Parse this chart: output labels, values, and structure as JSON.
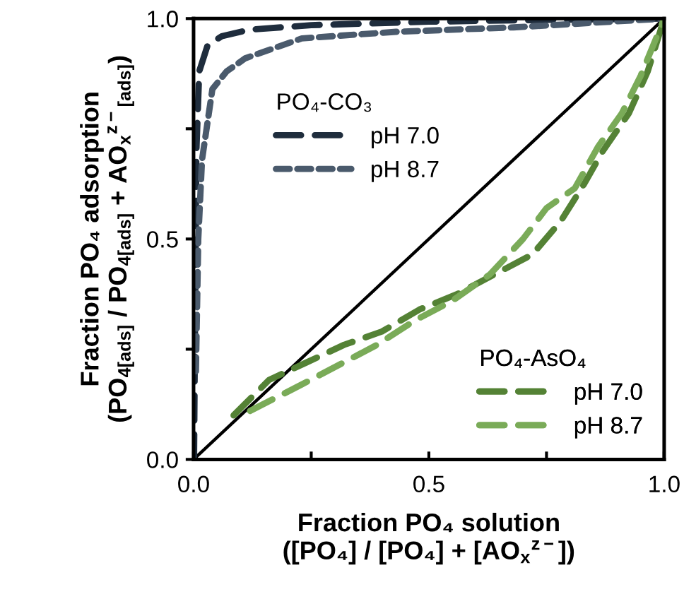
{
  "chart_data": {
    "type": "line",
    "xlabel": "Fraction PO₄ solution\n([PO₄] / [PO₄] + [AO$_{x}$$^{z−}$])",
    "ylabel": "Fraction PO₄ adsorption\n(PO$_{4[ads]}$ / PO$_{4[ads]}$ + AO$_{x}$$^{z−}$$_{[ads]}$)",
    "annotations": [
      "PO₄-CO₃",
      "PO₄-AsO₄"
    ],
    "xlim": [
      0,
      1
    ],
    "ylim": [
      0,
      1
    ],
    "xticks": [
      {
        "value": 0,
        "label": "0.0"
      },
      {
        "value": 0.25,
        "label": null
      },
      {
        "value": 0.5,
        "label": "0.5"
      },
      {
        "value": 0.75,
        "label": null
      },
      {
        "value": 1,
        "label": "1.0"
      }
    ],
    "yticks": [
      {
        "value": 0,
        "label": "0.0"
      },
      {
        "value": 0.25,
        "label": null
      },
      {
        "value": 0.5,
        "label": "0.5"
      },
      {
        "value": 0.75,
        "label": null
      },
      {
        "value": 1,
        "label": "1.0"
      }
    ],
    "grid": false,
    "legend": "right",
    "marker": "none",
    "series": [
      {
        "color": "#000000",
        "line_style": "solid",
        "x": [
          0,
          1
        ],
        "values": [
          0,
          1
        ]
      },
      {
        "name": "pH 7.0",
        "color": "#1f2d3d",
        "line_style": "dashed",
        "x": [
          0.001,
          0.003,
          0.006,
          0.012,
          0.03,
          0.06,
          0.12,
          0.25,
          0.5,
          0.75,
          1
        ],
        "values": [
          0.0,
          0.3,
          0.7,
          0.88,
          0.94,
          0.96,
          0.975,
          0.985,
          0.993,
          0.997,
          1
        ]
      },
      {
        "name": "pH 8.7",
        "color": "#4a5a6c",
        "line_style": "dotted",
        "x": [
          0.005,
          0.01,
          0.018,
          0.04,
          0.07,
          0.11,
          0.23,
          0.43,
          0.68,
          1
        ],
        "values": [
          0.2,
          0.5,
          0.68,
          0.84,
          0.88,
          0.91,
          0.955,
          0.97,
          0.98,
          1
        ]
      },
      {
        "name": "pH 7.0",
        "color": "#548235",
        "line_style": "dashed",
        "x": [
          0.085,
          0.16,
          0.24,
          0.32,
          0.4,
          0.48,
          0.56,
          0.64,
          0.72,
          0.78,
          0.83,
          0.87,
          0.925,
          0.965,
          1
        ],
        "values": [
          0.1,
          0.18,
          0.22,
          0.26,
          0.29,
          0.34,
          0.375,
          0.42,
          0.465,
          0.54,
          0.625,
          0.7,
          0.785,
          0.88,
          1
        ]
      },
      {
        "name": "pH 8.7",
        "color": "#7aab58",
        "line_style": "dashed",
        "x": [
          0.12,
          0.23,
          0.31,
          0.39,
          0.47,
          0.55,
          0.63,
          0.7,
          0.75,
          0.81,
          0.86,
          0.91,
          0.95,
          1
        ],
        "values": [
          0.11,
          0.17,
          0.215,
          0.26,
          0.315,
          0.36,
          0.42,
          0.5,
          0.57,
          0.615,
          0.71,
          0.785,
          0.87,
          1
        ]
      }
    ]
  }
}
